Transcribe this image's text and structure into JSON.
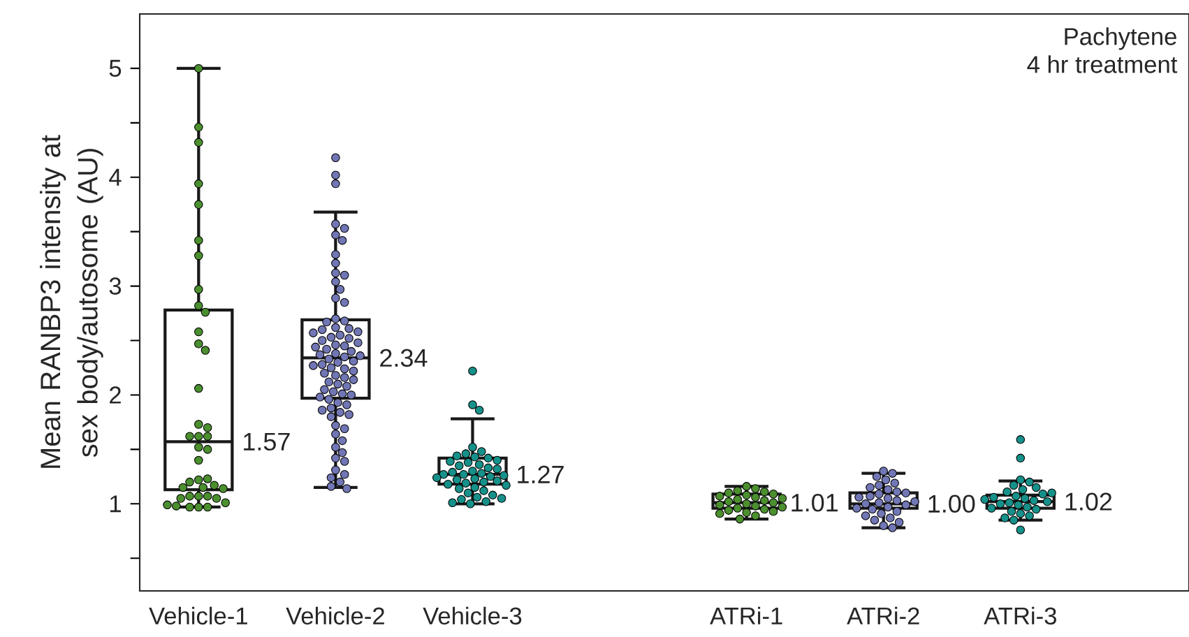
{
  "chart_data": {
    "type": "box",
    "ylabel": "Mean RANBP3 intensity at sex body/autosome (AU)",
    "categories": [
      "Vehicle-1",
      "Vehicle-2",
      "Vehicle-3",
      null,
      "ATRi-1",
      "ATRi-2",
      "ATRi-3"
    ],
    "ylim": [
      0.2,
      5.5
    ],
    "yticks": [
      {
        "value": 0.5,
        "label": null
      },
      1,
      {
        "value": 1.5,
        "label": null
      },
      2,
      {
        "value": 2.5,
        "label": null
      },
      3,
      {
        "value": 3.5,
        "label": null
      },
      4,
      {
        "value": 4.5,
        "label": null
      },
      5
    ],
    "boxes": [
      {
        "low": 0.97,
        "q1": 1.13,
        "median": 1.57,
        "q3": 2.78,
        "high": 5.0
      },
      {
        "low": 1.15,
        "q1": 1.97,
        "median": 2.34,
        "q3": 2.69,
        "high": 3.68
      },
      {
        "low": 1.0,
        "q1": 1.18,
        "median": 1.27,
        "q3": 1.42,
        "high": 1.78
      },
      null,
      {
        "low": 0.86,
        "q1": 0.96,
        "median": 1.01,
        "q3": 1.09,
        "high": 1.16
      },
      {
        "low": 0.78,
        "q1": 0.96,
        "median": 1.0,
        "q3": 1.1,
        "high": 1.28
      },
      {
        "low": 0.85,
        "q1": 0.96,
        "median": 1.02,
        "q3": 1.08,
        "high": 1.21
      }
    ],
    "series": [
      {
        "type": "scatter",
        "color": "#4b8f2f",
        "x": [
          "Vehicle-1",
          "Vehicle-1",
          "Vehicle-1",
          "Vehicle-1",
          "Vehicle-1",
          "Vehicle-1",
          "Vehicle-1",
          "Vehicle-1",
          "Vehicle-1",
          "Vehicle-1",
          "Vehicle-1",
          "Vehicle-1",
          "Vehicle-1",
          "Vehicle-1",
          "Vehicle-1",
          "Vehicle-1",
          "Vehicle-1",
          "Vehicle-1",
          "Vehicle-1",
          "Vehicle-1",
          "Vehicle-1",
          "Vehicle-1",
          "Vehicle-1",
          "Vehicle-1",
          "Vehicle-1",
          "Vehicle-1",
          "Vehicle-1",
          "Vehicle-1",
          "Vehicle-1",
          "Vehicle-1",
          "Vehicle-1",
          "Vehicle-1",
          "Vehicle-1",
          "Vehicle-1",
          "Vehicle-1",
          "Vehicle-1",
          "Vehicle-1",
          "Vehicle-1",
          "Vehicle-1",
          "Vehicle-1"
        ],
        "values": [
          5.0,
          4.46,
          4.32,
          3.94,
          3.75,
          3.42,
          3.28,
          2.97,
          2.82,
          2.76,
          2.58,
          2.47,
          2.41,
          2.06,
          1.73,
          1.7,
          1.62,
          1.62,
          1.62,
          1.52,
          1.5,
          1.4,
          1.22,
          1.23,
          1.2,
          1.17,
          1.15,
          1.15,
          1.14,
          1.07,
          1.07,
          1.07,
          1.05,
          1.05,
          1.01,
          0.97,
          0.97,
          0.97,
          0.98,
          0.99
        ]
      },
      {
        "type": "scatter",
        "color": "#7176b5",
        "x": [
          "Vehicle-2",
          "Vehicle-2",
          "Vehicle-2",
          "Vehicle-2",
          "Vehicle-2",
          "Vehicle-2",
          "Vehicle-2",
          "Vehicle-2",
          "Vehicle-2",
          "Vehicle-2",
          "Vehicle-2",
          "Vehicle-2",
          "Vehicle-2",
          "Vehicle-2",
          "Vehicle-2",
          "Vehicle-2",
          "Vehicle-2",
          "Vehicle-2",
          "Vehicle-2",
          "Vehicle-2",
          "Vehicle-2",
          "Vehicle-2",
          "Vehicle-2",
          "Vehicle-2",
          "Vehicle-2",
          "Vehicle-2",
          "Vehicle-2",
          "Vehicle-2",
          "Vehicle-2",
          "Vehicle-2",
          "Vehicle-2",
          "Vehicle-2",
          "Vehicle-2",
          "Vehicle-2",
          "Vehicle-2",
          "Vehicle-2",
          "Vehicle-2",
          "Vehicle-2",
          "Vehicle-2",
          "Vehicle-2",
          "Vehicle-2",
          "Vehicle-2",
          "Vehicle-2",
          "Vehicle-2",
          "Vehicle-2",
          "Vehicle-2",
          "Vehicle-2",
          "Vehicle-2",
          "Vehicle-2",
          "Vehicle-2",
          "Vehicle-2",
          "Vehicle-2",
          "Vehicle-2",
          "Vehicle-2",
          "Vehicle-2",
          "Vehicle-2",
          "Vehicle-2",
          "Vehicle-2",
          "Vehicle-2",
          "Vehicle-2",
          "Vehicle-2",
          "Vehicle-2",
          "Vehicle-2",
          "Vehicle-2",
          "Vehicle-2",
          "Vehicle-2",
          "Vehicle-2",
          "Vehicle-2",
          "Vehicle-2",
          "Vehicle-2",
          "Vehicle-2",
          "Vehicle-2",
          "Vehicle-2",
          "Vehicle-2",
          "Vehicle-2",
          "Vehicle-2",
          "Vehicle-2",
          "Vehicle-2",
          "Vehicle-2"
        ],
        "values": [
          4.18,
          4.02,
          3.94,
          3.57,
          3.53,
          3.47,
          3.42,
          3.29,
          3.21,
          3.12,
          3.1,
          3.04,
          2.97,
          2.89,
          2.85,
          2.7,
          2.68,
          2.67,
          2.62,
          2.61,
          2.6,
          2.58,
          2.57,
          2.55,
          2.53,
          2.52,
          2.5,
          2.48,
          2.46,
          2.45,
          2.44,
          2.42,
          2.4,
          2.38,
          2.37,
          2.36,
          2.35,
          2.33,
          2.31,
          2.3,
          2.28,
          2.27,
          2.25,
          2.24,
          2.22,
          2.2,
          2.18,
          2.16,
          2.14,
          2.12,
          2.1,
          2.08,
          2.05,
          2.03,
          2.01,
          2.0,
          1.98,
          1.96,
          1.93,
          1.91,
          1.88,
          1.86,
          1.84,
          1.82,
          1.8,
          1.72,
          1.69,
          1.64,
          1.58,
          1.52,
          1.47,
          1.42,
          1.39,
          1.31,
          1.27,
          1.24,
          1.2,
          1.16,
          1.14
        ]
      },
      {
        "type": "scatter",
        "color": "#16918a",
        "x": [
          "Vehicle-3",
          "Vehicle-3",
          "Vehicle-3",
          "Vehicle-3",
          "Vehicle-3",
          "Vehicle-3",
          "Vehicle-3",
          "Vehicle-3",
          "Vehicle-3",
          "Vehicle-3",
          "Vehicle-3",
          "Vehicle-3",
          "Vehicle-3",
          "Vehicle-3",
          "Vehicle-3",
          "Vehicle-3",
          "Vehicle-3",
          "Vehicle-3",
          "Vehicle-3",
          "Vehicle-3",
          "Vehicle-3",
          "Vehicle-3",
          "Vehicle-3",
          "Vehicle-3",
          "Vehicle-3",
          "Vehicle-3",
          "Vehicle-3",
          "Vehicle-3",
          "Vehicle-3",
          "Vehicle-3",
          "Vehicle-3",
          "Vehicle-3",
          "Vehicle-3",
          "Vehicle-3",
          "Vehicle-3",
          "Vehicle-3",
          "Vehicle-3",
          "Vehicle-3",
          "Vehicle-3",
          "Vehicle-3",
          "Vehicle-3",
          "Vehicle-3"
        ],
        "values": [
          2.22,
          1.91,
          1.86,
          1.52,
          1.48,
          1.46,
          1.44,
          1.43,
          1.42,
          1.4,
          1.39,
          1.38,
          1.36,
          1.35,
          1.33,
          1.32,
          1.3,
          1.29,
          1.28,
          1.27,
          1.27,
          1.26,
          1.25,
          1.24,
          1.23,
          1.22,
          1.21,
          1.2,
          1.19,
          1.18,
          1.17,
          1.15,
          1.14,
          1.12,
          1.1,
          1.08,
          1.06,
          1.04,
          1.02,
          1.0,
          1.01,
          1.05
        ]
      },
      {
        "type": "scatter",
        "color": "#4b8f2f",
        "x": [
          "ATRi-1",
          "ATRi-1",
          "ATRi-1",
          "ATRi-1",
          "ATRi-1",
          "ATRi-1",
          "ATRi-1",
          "ATRi-1",
          "ATRi-1",
          "ATRi-1",
          "ATRi-1",
          "ATRi-1",
          "ATRi-1",
          "ATRi-1",
          "ATRi-1",
          "ATRi-1",
          "ATRi-1",
          "ATRi-1",
          "ATRi-1",
          "ATRi-1",
          "ATRi-1",
          "ATRi-1",
          "ATRi-1",
          "ATRi-1",
          "ATRi-1",
          "ATRi-1"
        ],
        "values": [
          1.16,
          1.14,
          1.12,
          1.11,
          1.1,
          1.09,
          1.08,
          1.07,
          1.06,
          1.05,
          1.04,
          1.03,
          1.02,
          1.01,
          1.0,
          0.99,
          0.98,
          0.97,
          0.96,
          0.95,
          0.94,
          0.93,
          0.92,
          0.91,
          0.89,
          0.86
        ]
      },
      {
        "type": "scatter",
        "color": "#7176b5",
        "x": [
          "ATRi-2",
          "ATRi-2",
          "ATRi-2",
          "ATRi-2",
          "ATRi-2",
          "ATRi-2",
          "ATRi-2",
          "ATRi-2",
          "ATRi-2",
          "ATRi-2",
          "ATRi-2",
          "ATRi-2",
          "ATRi-2",
          "ATRi-2",
          "ATRi-2",
          "ATRi-2",
          "ATRi-2",
          "ATRi-2",
          "ATRi-2",
          "ATRi-2",
          "ATRi-2",
          "ATRi-2",
          "ATRi-2",
          "ATRi-2",
          "ATRi-2",
          "ATRi-2",
          "ATRi-2",
          "ATRi-2",
          "ATRi-2",
          "ATRi-2"
        ],
        "values": [
          1.3,
          1.28,
          1.25,
          1.22,
          1.19,
          1.17,
          1.15,
          1.13,
          1.11,
          1.09,
          1.07,
          1.05,
          1.03,
          1.01,
          1.0,
          0.99,
          0.97,
          0.95,
          0.93,
          0.91,
          0.89,
          0.87,
          0.85,
          0.83,
          0.8,
          0.78,
          1.06,
          1.02,
          0.96,
          1.1
        ]
      },
      {
        "type": "scatter",
        "color": "#16918a",
        "x": [
          "ATRi-3",
          "ATRi-3",
          "ATRi-3",
          "ATRi-3",
          "ATRi-3",
          "ATRi-3",
          "ATRi-3",
          "ATRi-3",
          "ATRi-3",
          "ATRi-3",
          "ATRi-3",
          "ATRi-3",
          "ATRi-3",
          "ATRi-3",
          "ATRi-3",
          "ATRi-3",
          "ATRi-3",
          "ATRi-3",
          "ATRi-3",
          "ATRi-3",
          "ATRi-3",
          "ATRi-3",
          "ATRi-3",
          "ATRi-3",
          "ATRi-3",
          "ATRi-3",
          "ATRi-3",
          "ATRi-3"
        ],
        "values": [
          1.59,
          1.42,
          1.22,
          1.2,
          1.17,
          1.15,
          1.13,
          1.11,
          1.09,
          1.07,
          1.05,
          1.03,
          1.01,
          1.0,
          0.99,
          0.97,
          0.95,
          0.93,
          0.91,
          0.89,
          0.87,
          0.85,
          0.76,
          1.06,
          1.02,
          0.96,
          1.1,
          1.04
        ]
      }
    ],
    "marker": "circle",
    "annotations": [
      "Pachytene",
      "4 hr treatment",
      {
        "text": "1.57",
        "x": "Vehicle-1",
        "y": 1.57
      },
      {
        "text": "2.34",
        "x": "Vehicle-2",
        "y": 2.34
      },
      {
        "text": "1.27",
        "x": "Vehicle-3",
        "y": 1.27
      },
      {
        "text": "1.01",
        "x": "ATRi-1",
        "y": 1.01
      },
      {
        "text": "1.00",
        "x": "ATRi-2",
        "y": 1.0
      },
      {
        "text": "1.02",
        "x": "ATRi-3",
        "y": 1.02
      }
    ]
  }
}
